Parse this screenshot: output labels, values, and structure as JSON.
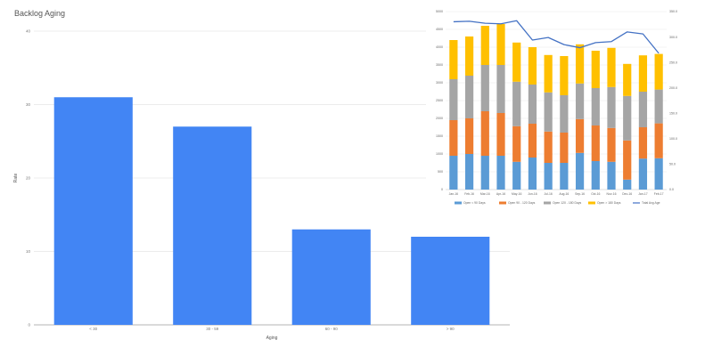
{
  "chart_data": [
    {
      "type": "bar",
      "title": "Backlog Aging",
      "xlabel": "Aging",
      "ylabel": "Rate",
      "categories": [
        "< 30",
        "30 - 59",
        "60 - 90",
        "> 90"
      ],
      "values": [
        31,
        27,
        13,
        12
      ],
      "ylim": [
        0,
        40
      ],
      "yticks": [
        "0",
        "10",
        "20",
        "30",
        "40"
      ],
      "grid": true,
      "color": "#4285f4"
    },
    {
      "type": "bar",
      "stacked": true,
      "categories": [
        "Jan-16",
        "Feb-16",
        "Mar-16",
        "Apr-16",
        "May-16",
        "Jun-16",
        "Jul-16",
        "Aug-16",
        "Sep-16",
        "Oct-16",
        "Nov-16",
        "Dec-16",
        "Jan-17",
        "Feb-17"
      ],
      "ylim": [
        0,
        5000
      ],
      "yticks": [
        "0",
        "500",
        "1000",
        "1500",
        "2000",
        "2500",
        "3000",
        "3500",
        "4000",
        "4500",
        "5000"
      ],
      "y2lim": [
        0,
        350
      ],
      "y2ticks": [
        "0.0",
        "50.0",
        "100.0",
        "150.0",
        "200.0",
        "250.0",
        "300.0",
        "350.0"
      ],
      "series": [
        {
          "name": "Open < 90 Days",
          "color": "#5b9bd5",
          "values": [
            950,
            1000,
            950,
            950,
            780,
            900,
            750,
            750,
            1030,
            800,
            780,
            280,
            870,
            880
          ]
        },
        {
          "name": "Open 90 - 120 Days",
          "color": "#ed7d31",
          "values": [
            1000,
            1000,
            1250,
            1200,
            1000,
            950,
            880,
            850,
            950,
            1000,
            950,
            1100,
            880,
            980
          ]
        },
        {
          "name": "Open 120 - 180 Days",
          "color": "#a5a5a5",
          "values": [
            1150,
            1200,
            1300,
            1350,
            1250,
            1100,
            1100,
            1050,
            1000,
            1050,
            1150,
            1250,
            1000,
            950
          ]
        },
        {
          "name": "Open > 180 Days",
          "color": "#ffc000",
          "values": [
            1100,
            1100,
            1100,
            1150,
            1100,
            1050,
            1050,
            1100,
            1100,
            1050,
            1100,
            900,
            1020,
            1000
          ]
        }
      ],
      "line": {
        "name": "Total Avg Age",
        "color": "#4472c4",
        "values": [
          330,
          331,
          327,
          326,
          332,
          294,
          299,
          285,
          279,
          289,
          291,
          310,
          306,
          268
        ]
      }
    }
  ]
}
